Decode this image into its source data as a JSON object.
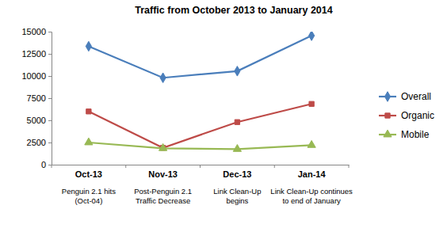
{
  "chart_data": {
    "type": "line",
    "title": "Traffic from October 2013 to January 2014",
    "categories": [
      "Oct-13",
      "Nov-13",
      "Dec-13",
      "Jan-14"
    ],
    "annotations": [
      [
        "Penguin 2.1 hits",
        "(Oct-04)"
      ],
      [
        "Post-Penguin 2.1",
        "Traffic Decrease"
      ],
      [
        "Link Clean-Up",
        "begins"
      ],
      [
        "Link Clean-Up continues",
        "to end of January"
      ]
    ],
    "series": [
      {
        "name": "Overall",
        "color": "#4a7ebb",
        "marker": "diamond",
        "values": [
          13350,
          9800,
          10550,
          14550
        ]
      },
      {
        "name": "Organic",
        "color": "#be4b48",
        "marker": "square",
        "values": [
          6000,
          1900,
          4800,
          6850
        ]
      },
      {
        "name": "Mobile",
        "color": "#98b954",
        "marker": "triangle",
        "values": [
          2500,
          1850,
          1750,
          2200
        ]
      }
    ],
    "ylim": [
      0,
      15000
    ],
    "yticks": [
      0,
      2500,
      5000,
      7500,
      10000,
      12500,
      15000
    ],
    "grid": false,
    "legend": "right"
  }
}
